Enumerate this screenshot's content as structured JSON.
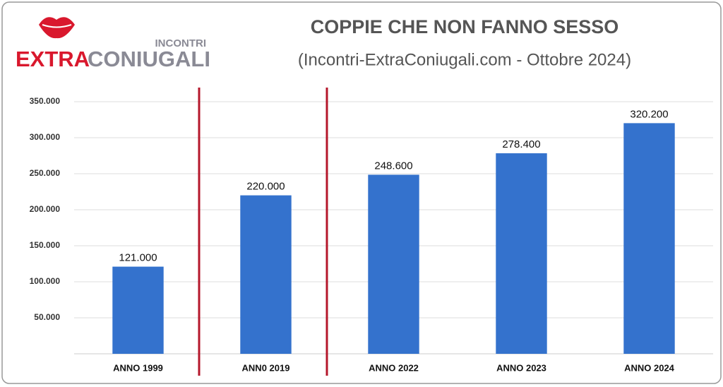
{
  "logo": {
    "top": "INCONTRI",
    "left": "EXTRA",
    "right": "CONIUGALI"
  },
  "chart_data": {
    "type": "bar",
    "title": "COPPIE CHE NON FANNO SESSO",
    "subtitle": "(Incontri-ExtraConiugali.com - Ottobre 2024)",
    "categories": [
      "ANNO 1999",
      "ANN0 2019",
      "ANNO 2022",
      "ANNO 2023",
      "ANNO 2024"
    ],
    "values": [
      121000,
      220000,
      248600,
      278400,
      320200
    ],
    "value_labels": [
      "121.000",
      "220.000",
      "248.600",
      "278.400",
      "320.200"
    ],
    "color": "#3472cd",
    "ylim": [
      0,
      350000
    ],
    "yticks": [
      {
        "value": 50000,
        "label": "50.000"
      },
      {
        "value": 100000,
        "label": "100.000"
      },
      {
        "value": 150000,
        "label": "150.000"
      },
      {
        "value": 200000,
        "label": "200.000"
      },
      {
        "value": 250000,
        "label": "250.000"
      },
      {
        "value": 300000,
        "label": "300.000"
      },
      {
        "value": 350000,
        "label": "350.000"
      }
    ],
    "grid": true
  }
}
